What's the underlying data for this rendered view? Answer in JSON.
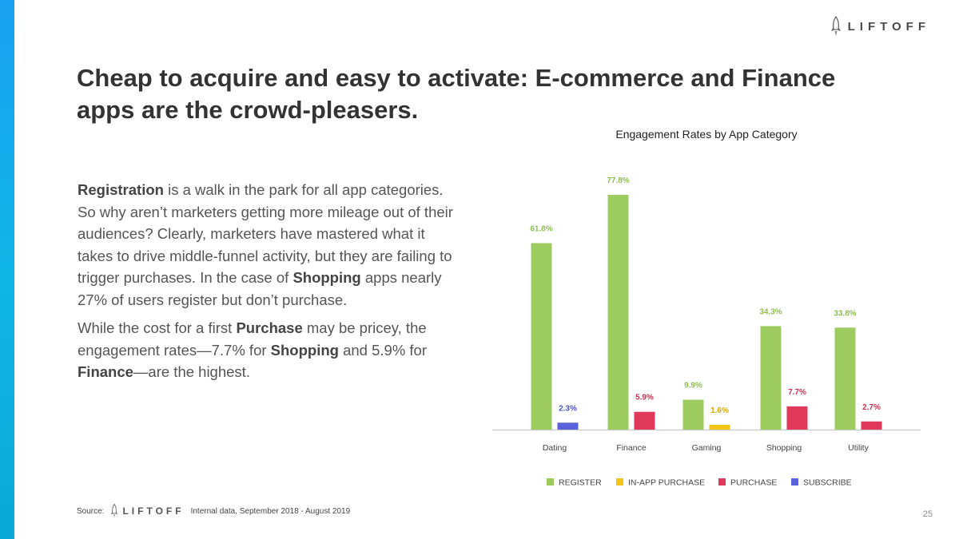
{
  "brand": {
    "name": "LIFTOFF"
  },
  "slide": {
    "title": "Cheap to acquire and easy to activate: E-commerce and Finance apps are the crowd-pleasers.",
    "page_number": "25"
  },
  "body": {
    "p1": {
      "b1": "Registration",
      "t1": " is a walk in the park for all app categories. So why aren’t marketers getting more mileage out of their audiences? Clearly, marketers have mastered what it takes to drive middle-funnel activity, but they are failing to trigger purchases. In the case of ",
      "b2": "Shopping",
      "t2": " apps nearly 27% of users register but don’t purchase."
    },
    "p2": {
      "t1": "While the cost for a first ",
      "b1": "Purchase",
      "t2": " may be pricey, the engagement rates—7.7% for ",
      "b2": "Shopping",
      "t3": " and 5.9% for ",
      "b3": "Finance",
      "t4": "—are the highest."
    }
  },
  "source": {
    "label": "Source:",
    "text": "Internal data, September 2018 - August 2019"
  },
  "colors": {
    "register": "#9ccc5f",
    "in_app_purchase": "#f2c418",
    "purchase": "#e0395c",
    "subscribe": "#5b63dc",
    "accent_bar": "#1aa0f0"
  },
  "chart_data": {
    "type": "bar",
    "title": "Engagement Rates by App Category",
    "categories": [
      "Dating",
      "Finance",
      "Gaming",
      "Shopping",
      "Utility"
    ],
    "legend_position": "bottom",
    "grid": false,
    "ylim": [
      0,
      85
    ],
    "series": [
      {
        "name": "REGISTER",
        "color": "#9ccc5f",
        "values": [
          61.8,
          77.8,
          9.9,
          34.3,
          33.8
        ]
      },
      {
        "name": "IN-APP PURCHASE",
        "color": "#f2c418",
        "values": [
          null,
          null,
          1.6,
          null,
          null
        ]
      },
      {
        "name": "PURCHASE",
        "color": "#e0395c",
        "values": [
          null,
          5.9,
          null,
          7.7,
          2.7
        ]
      },
      {
        "name": "SUBSCRIBE",
        "color": "#5b63dc",
        "values": [
          2.3,
          null,
          null,
          null,
          null
        ]
      }
    ]
  }
}
